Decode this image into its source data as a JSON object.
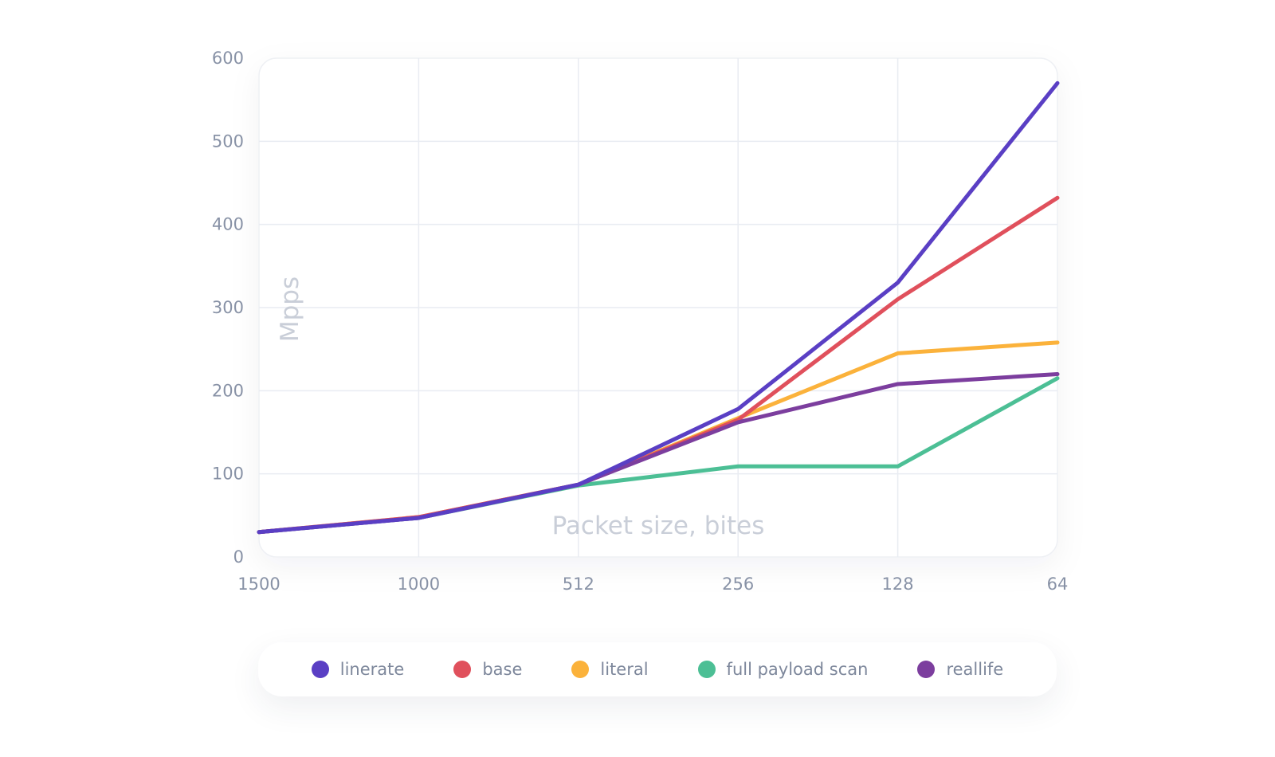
{
  "chart_data": {
    "type": "line",
    "title": "",
    "xlabel": "Packet size, bites",
    "ylabel": "Mpps",
    "categories": [
      "1500",
      "1000",
      "512",
      "256",
      "128",
      "64"
    ],
    "ylim": [
      0,
      600
    ],
    "yticks": [
      0,
      100,
      200,
      300,
      400,
      500,
      600
    ],
    "grid": true,
    "legend_position": "bottom",
    "series": [
      {
        "name": "linerate",
        "color": "#5a3fc4",
        "values": [
          30,
          47,
          87,
          178,
          330,
          570
        ]
      },
      {
        "name": "base",
        "color": "#e0505c",
        "values": [
          30,
          48,
          87,
          165,
          310,
          432
        ]
      },
      {
        "name": "literal",
        "color": "#fbb23b",
        "values": [
          30,
          48,
          87,
          167,
          245,
          258
        ]
      },
      {
        "name": "full payload scan",
        "color": "#4cbf95",
        "values": [
          30,
          47,
          86,
          109,
          109,
          215
        ]
      },
      {
        "name": "reallife",
        "color": "#7c3e9e",
        "values": [
          30,
          47,
          87,
          162,
          208,
          220
        ]
      }
    ]
  }
}
